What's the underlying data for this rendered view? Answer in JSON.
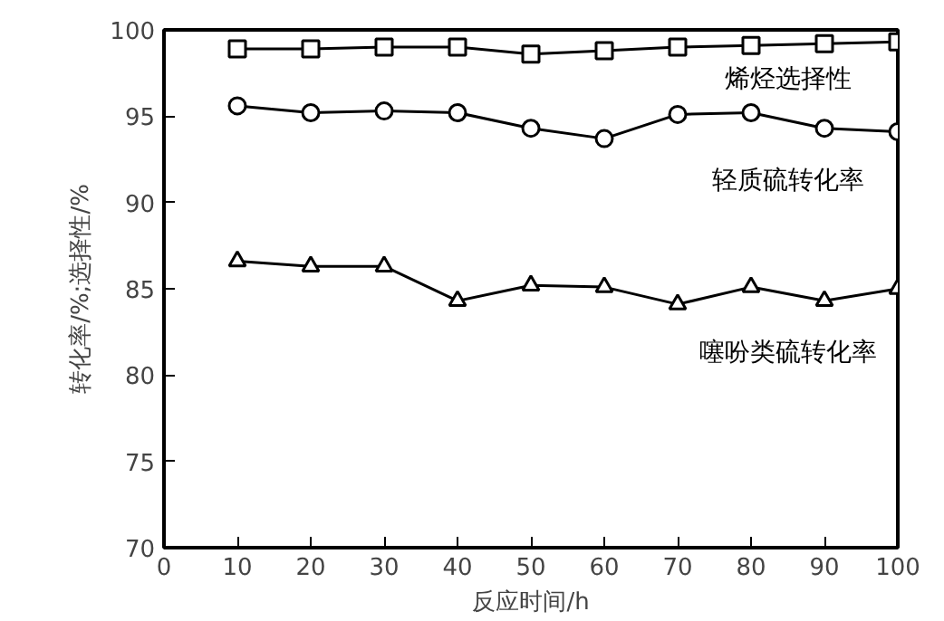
{
  "chart_data": {
    "type": "line",
    "xlabel": "反应时间/h",
    "ylabel": "转化率/%;选择性/%",
    "x": [
      10,
      20,
      30,
      40,
      50,
      60,
      70,
      80,
      90,
      100
    ],
    "series": [
      {
        "name": "烯烃选择性",
        "color": "#000000",
        "marker": "square",
        "values": [
          98.9,
          98.9,
          99.0,
          99.0,
          98.6,
          98.8,
          99.0,
          99.1,
          99.2,
          99.3
        ]
      },
      {
        "name": "轻质硫转化率",
        "color": "#000000",
        "marker": "circle",
        "values": [
          95.6,
          95.2,
          95.3,
          95.2,
          94.3,
          93.7,
          95.1,
          95.2,
          94.3,
          94.1
        ]
      },
      {
        "name": "噻吩类硫转化率",
        "color": "#000000",
        "marker": "triangle",
        "values": [
          86.6,
          86.3,
          86.3,
          84.3,
          85.2,
          85.1,
          84.1,
          85.1,
          84.3,
          85.0
        ]
      }
    ],
    "xlim": [
      0,
      100
    ],
    "ylim": [
      70,
      100
    ],
    "xticks": [
      0,
      10,
      20,
      30,
      40,
      50,
      60,
      70,
      80,
      90,
      100
    ],
    "yticks": [
      70,
      75,
      80,
      85,
      90,
      95,
      100
    ],
    "grid": false,
    "legend": false,
    "line_style": "solid"
  }
}
